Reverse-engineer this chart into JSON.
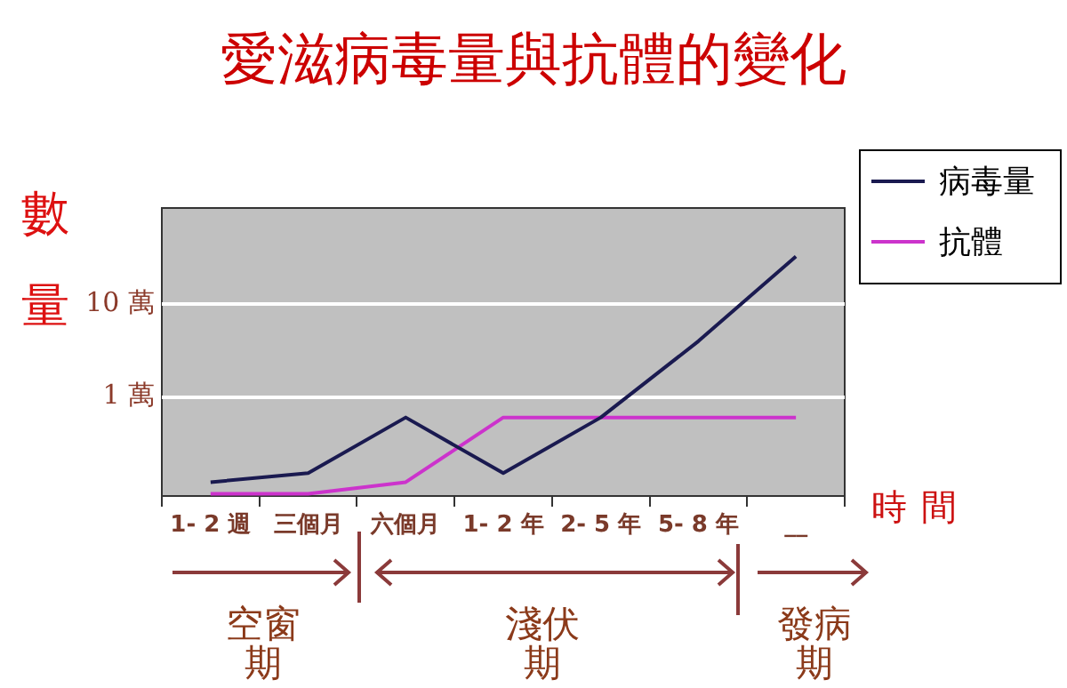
{
  "chart_data": {
    "type": "line",
    "title": "愛滋病毒量與抗體的變化",
    "ylabel": "數量",
    "xlabel": "時間",
    "categories": [
      "1- 2 週",
      "三個月",
      "六個月",
      "1- 2 年",
      "2- 5 年",
      "5- 8 年",
      "__"
    ],
    "series": [
      {
        "name": "病毒量",
        "color": "#1a1a50",
        "values": [
          0.12,
          0.15,
          0.6,
          0.15,
          0.6,
          4,
          33
        ]
      },
      {
        "name": "抗體",
        "color": "#cc33cc",
        "values": [
          0.09,
          0.09,
          0.12,
          0.6,
          0.6,
          0.6,
          0.6
        ]
      }
    ],
    "log": "y",
    "ylim": [
      0.085,
      110
    ],
    "yticks": [
      {
        "value": 1,
        "label": "1 萬"
      },
      {
        "value": 10,
        "label": "10 萬"
      }
    ],
    "grid": "y",
    "legend": "top right",
    "marker": "none",
    "line_style": "solid",
    "annotations": [
      "空窗期",
      "淺伏期",
      "發病期"
    ]
  }
}
